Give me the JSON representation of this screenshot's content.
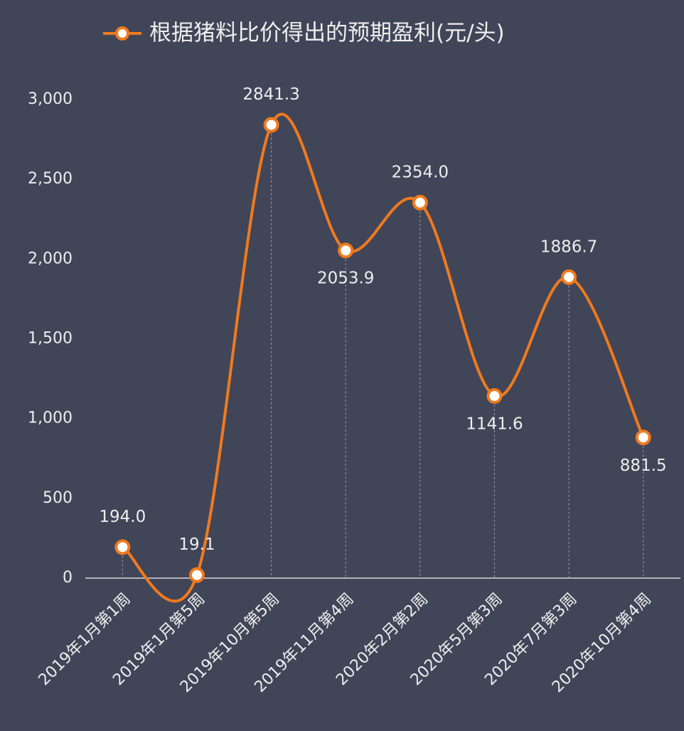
{
  "chart_data": {
    "type": "line",
    "categories": [
      "2019年1月第1周",
      "2019年1月第5周",
      "2019年10月第5周",
      "2019年11月第4周",
      "2020年2月第2周",
      "2020年5月第3周",
      "2020年7月第3周",
      "2020年10月第4周"
    ],
    "series": [
      {
        "name": "根据猪料比价得出的预期盈利(元/头)",
        "color": "#f07a1e",
        "values": [
          194.0,
          19.1,
          2841.3,
          2053.9,
          2354.0,
          1141.6,
          1886.7,
          881.5
        ],
        "value_labels": [
          "194.0",
          "19.1",
          "2841.3",
          "2053.9",
          "2354.0",
          "1141.6",
          "1886.7",
          "881.5"
        ]
      }
    ],
    "ylim": [
      0,
      3000
    ],
    "yticks": [
      0,
      500,
      {
        "value": 1000,
        "label": "1,000"
      },
      {
        "value": 1500,
        "label": "1,500"
      },
      {
        "value": 2000,
        "label": "2,000"
      },
      {
        "value": 2500,
        "label": "2,500"
      },
      {
        "value": 3000,
        "label": "3,000"
      }
    ],
    "smooth": true
  }
}
